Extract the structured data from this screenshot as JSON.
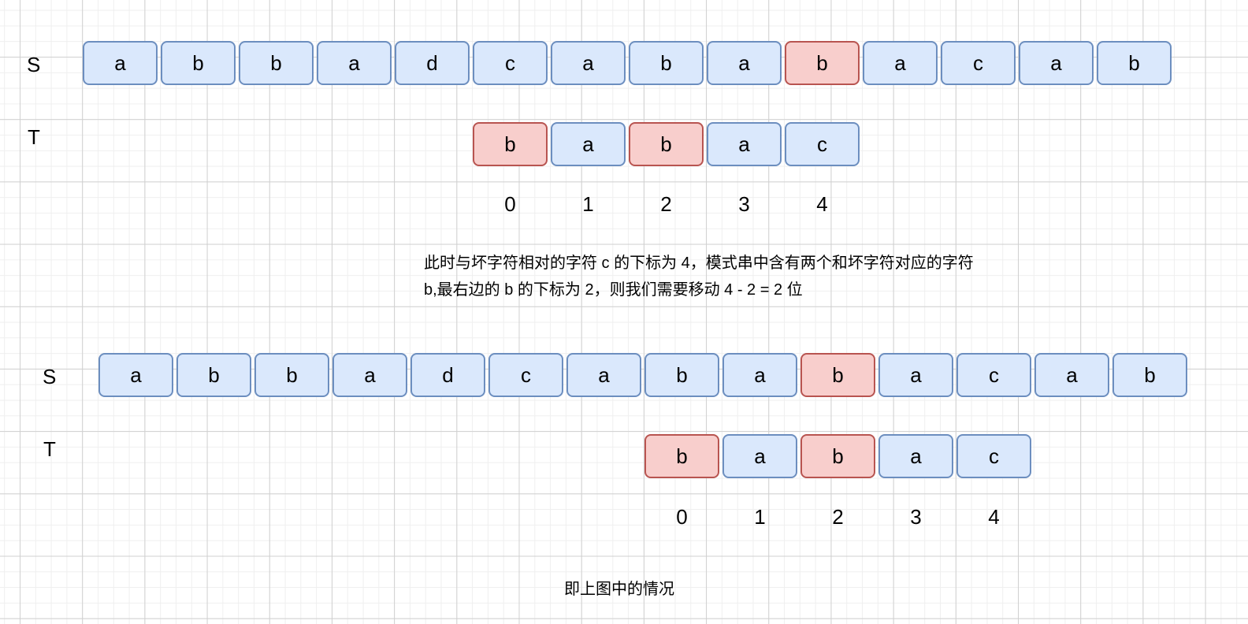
{
  "colors": {
    "cell_fill": "#dae8fc",
    "cell_stroke": "#6c8ebf",
    "bad_fill": "#f8cecc",
    "bad_stroke": "#b85450"
  },
  "top": {
    "s_label": "S",
    "t_label": "T",
    "s_cells": [
      {
        "c": "a"
      },
      {
        "c": "b"
      },
      {
        "c": "b"
      },
      {
        "c": "a"
      },
      {
        "c": "d"
      },
      {
        "c": "c"
      },
      {
        "c": "a"
      },
      {
        "c": "b"
      },
      {
        "c": "a"
      },
      {
        "c": "b",
        "bad": true
      },
      {
        "c": "a"
      },
      {
        "c": "c"
      },
      {
        "c": "a"
      },
      {
        "c": "b"
      }
    ],
    "t_cells": [
      {
        "c": "b",
        "bad": true
      },
      {
        "c": "a"
      },
      {
        "c": "b",
        "bad": true
      },
      {
        "c": "a"
      },
      {
        "c": "c"
      }
    ],
    "indices": [
      "0",
      "1",
      "2",
      "3",
      "4"
    ]
  },
  "explanation": [
    "此时与坏字符相对的字符 c 的下标为 4，模式串中含有两个和坏字符对应的字符",
    "b,最右边的 b 的下标为 2，则我们需要移动 4 - 2 = 2 位"
  ],
  "bottom": {
    "s_label": "S",
    "t_label": "T",
    "s_cells": [
      {
        "c": "a"
      },
      {
        "c": "b"
      },
      {
        "c": "b"
      },
      {
        "c": "a"
      },
      {
        "c": "d"
      },
      {
        "c": "c"
      },
      {
        "c": "a"
      },
      {
        "c": "b"
      },
      {
        "c": "a"
      },
      {
        "c": "b",
        "bad": true
      },
      {
        "c": "a"
      },
      {
        "c": "c"
      },
      {
        "c": "a"
      },
      {
        "c": "b"
      }
    ],
    "t_cells": [
      {
        "c": "b",
        "bad": true
      },
      {
        "c": "a"
      },
      {
        "c": "b",
        "bad": true
      },
      {
        "c": "a"
      },
      {
        "c": "c"
      }
    ],
    "indices": [
      "0",
      "1",
      "2",
      "3",
      "4"
    ]
  },
  "caption": "即上图中的情况"
}
